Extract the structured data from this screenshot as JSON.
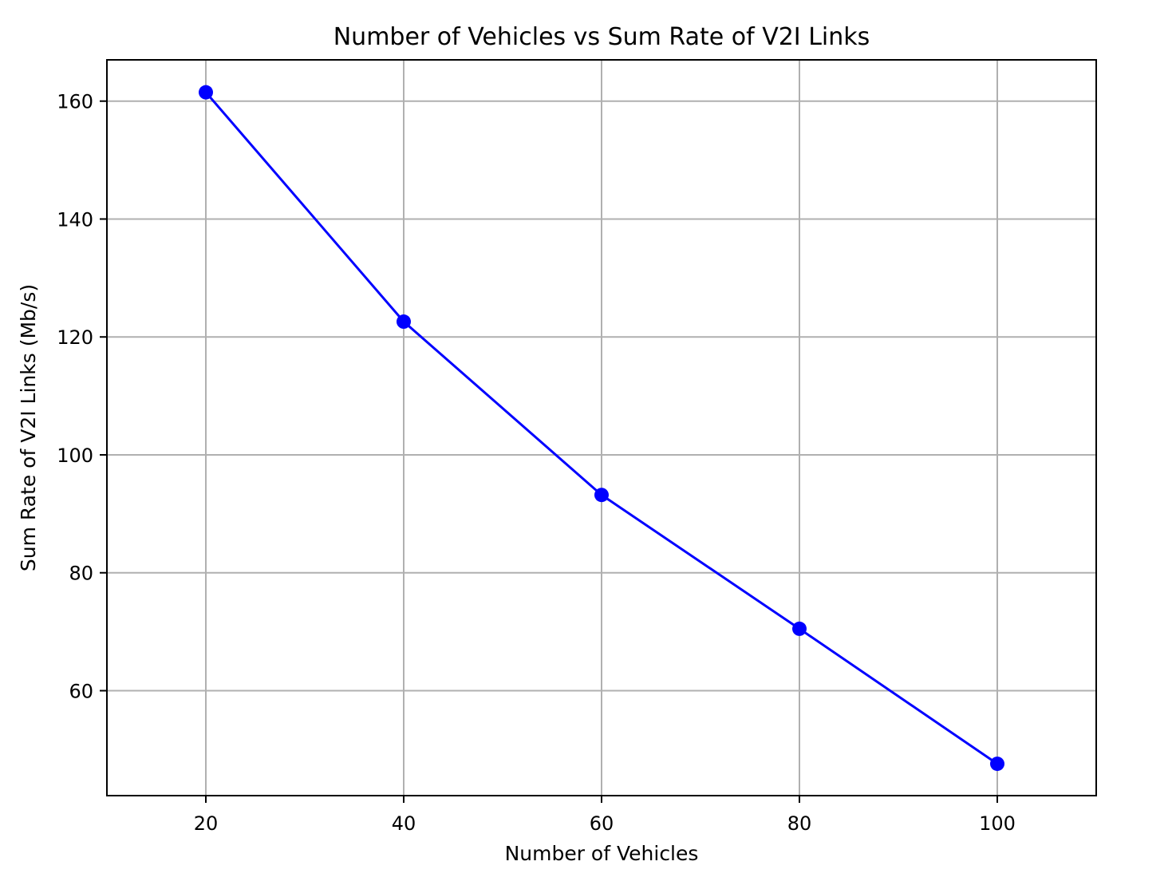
{
  "chart_data": {
    "type": "line",
    "title": "Number of Vehicles vs Sum Rate of V2I Links",
    "xlabel": "Number of Vehicles",
    "ylabel": "Sum Rate of V2I Links (Mb/s)",
    "xlim": [
      10,
      110
    ],
    "ylim": [
      42.2,
      167
    ],
    "xticks": [
      20,
      40,
      60,
      80,
      100
    ],
    "yticks": [
      60,
      80,
      100,
      120,
      140,
      160
    ],
    "grid": true,
    "series": [
      {
        "x": [
          20,
          40,
          60,
          80,
          100
        ],
        "y": [
          161.5,
          122.6,
          93.2,
          70.5,
          47.6
        ],
        "color": "#0000ff",
        "marker": "circle"
      }
    ]
  }
}
